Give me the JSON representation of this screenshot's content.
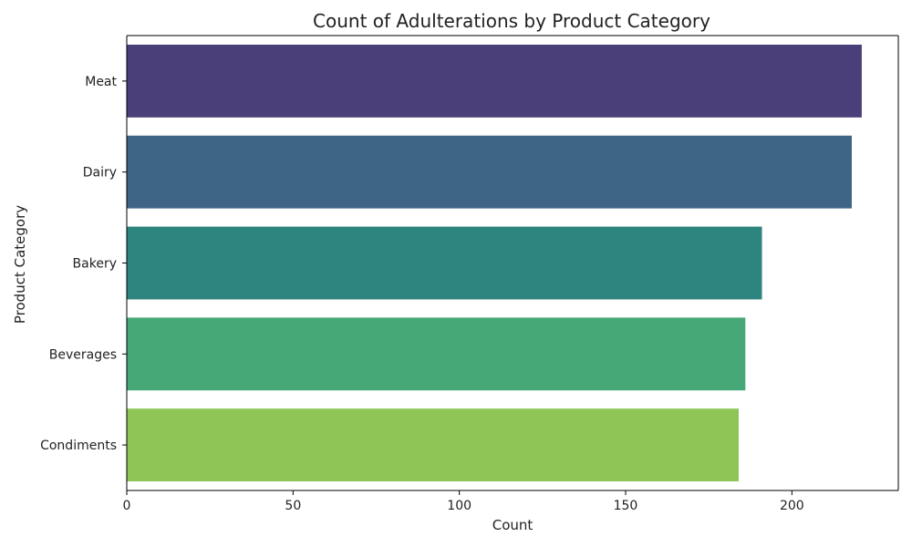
{
  "chart_data": {
    "type": "bar",
    "orientation": "horizontal",
    "title": "Count of Adulterations by Product Category",
    "xlabel": "Count",
    "ylabel": "Product Category",
    "categories": [
      "Meat",
      "Dairy",
      "Bakery",
      "Beverages",
      "Condiments"
    ],
    "values": [
      221,
      218,
      191,
      186,
      184
    ],
    "colors": [
      "#4b3f7a",
      "#3e6586",
      "#2e847e",
      "#46a876",
      "#8ec556"
    ],
    "xlim": [
      0,
      232
    ],
    "xticks": [
      0,
      50,
      100,
      150,
      200
    ],
    "grid": false,
    "legend": "none"
  }
}
